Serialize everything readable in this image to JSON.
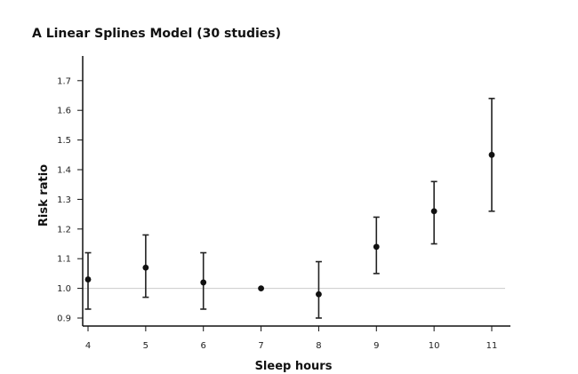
{
  "chart_data": {
    "type": "scatter",
    "title": "A Linear Splines Model (30 studies)",
    "xlabel": "Sleep hours",
    "ylabel": "Risk ratio",
    "x_ticks": [
      "4",
      "5",
      "6",
      "7",
      "8",
      "9",
      "10",
      "11"
    ],
    "y_ticks": [
      "0.9",
      "1.0",
      "1.1",
      "1.2",
      "1.3",
      "1.4",
      "1.5",
      "1.6",
      "1.7"
    ],
    "xlim": [
      4,
      11
    ],
    "ylim": [
      0.87,
      1.77
    ],
    "reference_line": 1.0,
    "grid": false,
    "series": [
      {
        "x": [
          4,
          5,
          6,
          7,
          8,
          9,
          10,
          11
        ],
        "y": [
          1.03,
          1.07,
          1.02,
          1.0,
          0.98,
          1.14,
          1.26,
          1.45
        ],
        "lower": [
          0.93,
          0.97,
          0.93,
          null,
          0.9,
          1.05,
          1.15,
          1.26
        ],
        "upper": [
          1.12,
          1.18,
          1.12,
          null,
          1.09,
          1.24,
          1.36,
          1.64
        ]
      }
    ],
    "colors": {
      "points": "#111111",
      "error_bars": "#222222",
      "axes": "#111111",
      "reference_line": "#cccccc"
    }
  }
}
